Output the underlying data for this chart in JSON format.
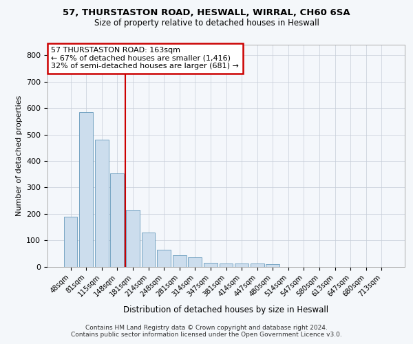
{
  "title_line1": "57, THURSTASTON ROAD, HESWALL, WIRRAL, CH60 6SA",
  "title_line2": "Size of property relative to detached houses in Heswall",
  "xlabel": "Distribution of detached houses by size in Heswall",
  "ylabel": "Number of detached properties",
  "bar_color": "#ccdded",
  "bar_edge_color": "#6699bb",
  "categories": [
    "48sqm",
    "81sqm",
    "115sqm",
    "148sqm",
    "181sqm",
    "214sqm",
    "248sqm",
    "281sqm",
    "314sqm",
    "347sqm",
    "381sqm",
    "414sqm",
    "447sqm",
    "480sqm",
    "514sqm",
    "547sqm",
    "580sqm",
    "613sqm",
    "647sqm",
    "680sqm",
    "713sqm"
  ],
  "values": [
    190,
    585,
    480,
    352,
    215,
    130,
    63,
    42,
    35,
    15,
    12,
    11,
    11,
    9,
    0,
    0,
    0,
    0,
    0,
    0,
    0
  ],
  "vline_x": 3.5,
  "vline_color": "#cc0000",
  "annotation_text": "57 THURSTASTON ROAD: 163sqm\n← 67% of detached houses are smaller (1,416)\n32% of semi-detached houses are larger (681) →",
  "annotation_box_color": "#ffffff",
  "annotation_box_edge_color": "#cc0000",
  "footnote_line1": "Contains HM Land Registry data © Crown copyright and database right 2024.",
  "footnote_line2": "Contains public sector information licensed under the Open Government Licence v3.0.",
  "ylim": [
    0,
    840
  ],
  "yticks": [
    0,
    100,
    200,
    300,
    400,
    500,
    600,
    700,
    800
  ],
  "bg_color": "#f4f7fa",
  "plot_bg_color": "#f4f7fb"
}
